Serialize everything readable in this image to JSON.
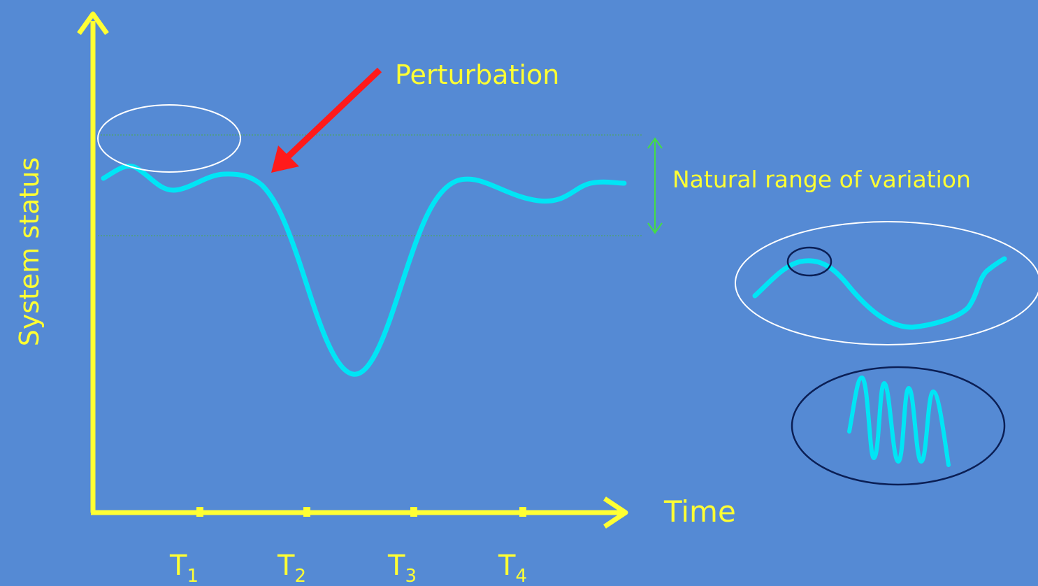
{
  "diagram": {
    "y_axis_label": "System status",
    "x_axis_label": "Time",
    "annotation": "Perturbation",
    "range_label": "Natural range of variation",
    "time_ticks": [
      {
        "label": "T",
        "subscript": "1"
      },
      {
        "label": "T",
        "subscript": "2"
      },
      {
        "label": "T",
        "subscript": "3"
      },
      {
        "label": "T",
        "subscript": "4"
      }
    ]
  }
}
